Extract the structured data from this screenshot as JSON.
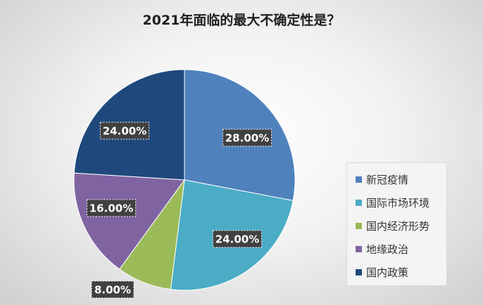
{
  "chart_data": {
    "type": "pie",
    "title": "2021年面临的最大不确定性是？",
    "categories": [
      "新冠疫情",
      "国际市场环境",
      "国内经济形势",
      "地缘政治",
      "国内政策"
    ],
    "values": [
      28,
      24,
      8,
      16,
      24
    ],
    "data_labels": [
      "28.00%",
      "24.00%",
      "8.00%",
      "16.00%",
      "24.00%"
    ],
    "colors": [
      "#4f81bd",
      "#4bacc6",
      "#9bbb59",
      "#8064a2",
      "#1f497d"
    ],
    "legend_position": "right"
  }
}
